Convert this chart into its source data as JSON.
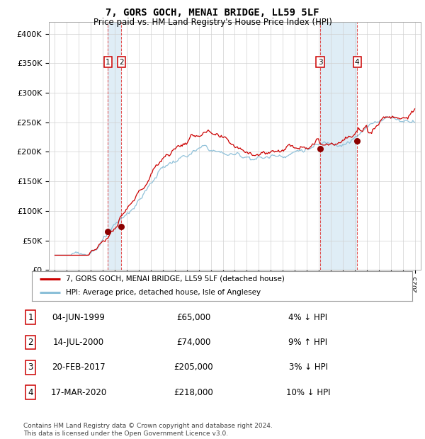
{
  "title": "7, GORS GOCH, MENAI BRIDGE, LL59 5LF",
  "subtitle": "Price paid vs. HM Land Registry's House Price Index (HPI)",
  "ylim": [
    0,
    420000
  ],
  "yticks": [
    0,
    50000,
    100000,
    150000,
    200000,
    250000,
    300000,
    350000,
    400000
  ],
  "ytick_labels": [
    "£0",
    "£50K",
    "£100K",
    "£150K",
    "£200K",
    "£250K",
    "£300K",
    "£350K",
    "£400K"
  ],
  "xlim_start": 1994.5,
  "xlim_end": 2025.5,
  "hpi_color": "#8bbfd8",
  "price_color": "#cc0000",
  "dot_color": "#8b0000",
  "span_color": "#daeaf5",
  "grid_color": "#d0d0d0",
  "transactions": [
    {
      "label": "1",
      "date_num": 1999.42,
      "price": 65000,
      "date_str": "04-JUN-1999",
      "pct_str": "4% ↓ HPI"
    },
    {
      "label": "2",
      "date_num": 2000.53,
      "price": 74000,
      "date_str": "14-JUL-2000",
      "pct_str": "9% ↑ HPI"
    },
    {
      "label": "3",
      "date_num": 2017.12,
      "price": 205000,
      "date_str": "20-FEB-2017",
      "pct_str": "3% ↓ HPI"
    },
    {
      "label": "4",
      "date_num": 2020.2,
      "price": 218000,
      "date_str": "17-MAR-2020",
      "pct_str": "10% ↓ HPI"
    }
  ],
  "legend_line1": "7, GORS GOCH, MENAI BRIDGE, LL59 5LF (detached house)",
  "legend_line2": "HPI: Average price, detached house, Isle of Anglesey",
  "footnote": "Contains HM Land Registry data © Crown copyright and database right 2024.\nThis data is licensed under the Open Government Licence v3.0.",
  "table_rows": [
    [
      "1",
      "04-JUN-1999",
      "£65,000",
      "4% ↓ HPI"
    ],
    [
      "2",
      "14-JUL-2000",
      "£74,000",
      "9% ↑ HPI"
    ],
    [
      "3",
      "20-FEB-2017",
      "£205,000",
      "3% ↓ HPI"
    ],
    [
      "4",
      "17-MAR-2020",
      "£218,000",
      "10% ↓ HPI"
    ]
  ]
}
